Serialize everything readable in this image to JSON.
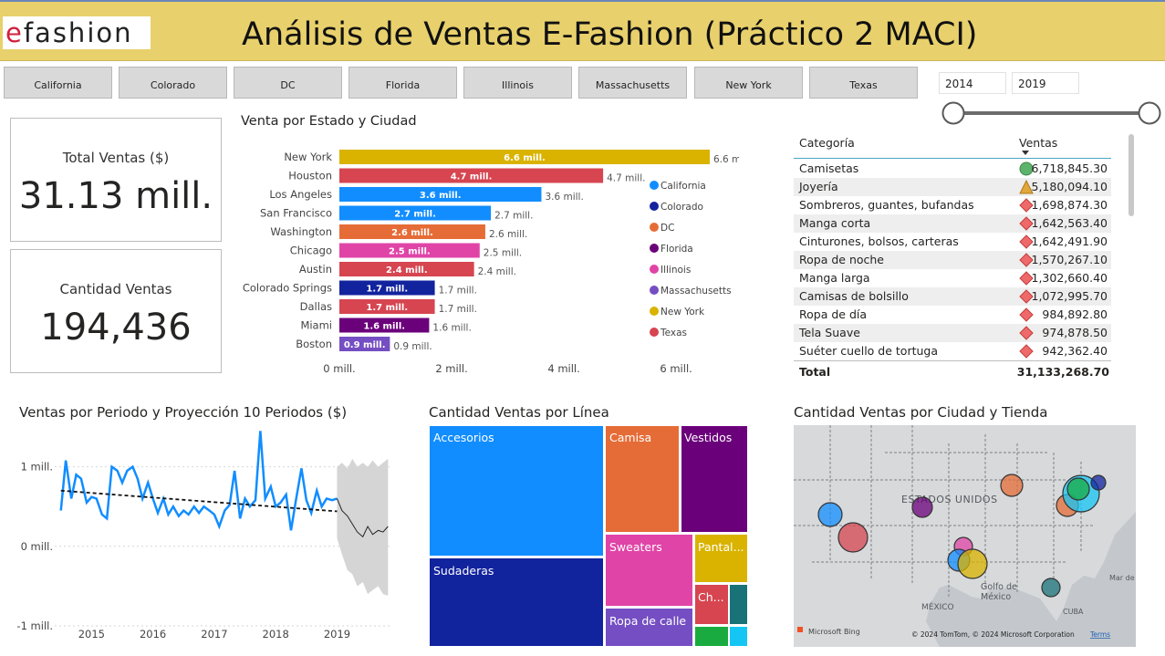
{
  "header": {
    "logo_e": "e",
    "logo_rest": "fashion",
    "title": "Análisis de Ventas E-Fashion (Práctico 2 MACI)"
  },
  "state_slicer": [
    "California",
    "Colorado",
    "DC",
    "Florida",
    "Illinois",
    "Massachusetts",
    "New York",
    "Texas"
  ],
  "date_slicer": {
    "start": "2014",
    "end": "2019",
    "range_selected": [
      0,
      1
    ]
  },
  "cards": {
    "total_label": "Total Ventas ($)",
    "total_value": "31.13 mill.",
    "qty_label": "Cantidad Ventas",
    "qty_value": "194,436"
  },
  "bar_chart_title": "Venta por Estado y Ciudad",
  "line_chart_title": "Ventas por Periodo y Proyección 10 Periodos ($)",
  "treemap_title": "Cantidad Ventas por Línea",
  "map_title": "Cantidad Ventas por Ciudad y Tienda",
  "map": {
    "country_label": "ESTADOS UNIDOS",
    "gulf_label_1": "Golfo de",
    "gulf_label_2": "México",
    "mexico_label": "MÉXICO",
    "cuba_label": "CUBA",
    "sea_label": "Mar de",
    "bing_label": "Microsoft Bing",
    "copyright": "© 2024 TomTom, © 2024 Microsoft Corporation",
    "terms": "Terms"
  },
  "colors": {
    "California": "#118dff",
    "Colorado": "#12239e",
    "DC": "#e66c37",
    "Florida": "#6b007b",
    "Illinois": "#e044a7",
    "Massachusetts": "#744ec2",
    "New York": "#d9b300",
    "Texas": "#d64550",
    "header": "#e8d06c",
    "kpi_good": "#5db36b",
    "kpi_mid": "#e0a73a",
    "kpi_bad": "#ee6a6a"
  },
  "chart_data": [
    {
      "type": "bar",
      "orientation": "horizontal",
      "title": "Venta por Estado y Ciudad",
      "categories": [
        "New York",
        "Houston",
        "Los Angeles",
        "San Francisco",
        "Washington",
        "Chicago",
        "Austin",
        "Colorado Springs",
        "Dallas",
        "Miami",
        "Boston"
      ],
      "values": [
        6.6,
        4.7,
        3.6,
        2.7,
        2.6,
        2.5,
        2.4,
        1.7,
        1.7,
        1.6,
        0.9
      ],
      "labels": [
        "6.6 mill.",
        "4.7 mill.",
        "3.6 mill.",
        "2.7 mill.",
        "2.6 mill.",
        "2.5 mill.",
        "2.4 mill.",
        "1.7 mill.",
        "1.7 mill.",
        "1.6 mill.",
        "0.9 mill."
      ],
      "state": [
        "New York",
        "Texas",
        "California",
        "California",
        "DC",
        "Illinois",
        "Texas",
        "Colorado",
        "Texas",
        "Florida",
        "Massachusetts"
      ],
      "x_ticks": [
        "0 mill.",
        "2 mill.",
        "4 mill.",
        "6 mill."
      ],
      "xlim": [
        0,
        6.6
      ],
      "legend": [
        "California",
        "Colorado",
        "DC",
        "Florida",
        "Illinois",
        "Massachusetts",
        "New York",
        "Texas"
      ],
      "legend_position": "right"
    },
    {
      "type": "line",
      "title": "Ventas por Periodo y Proyección 10 Periodos ($)",
      "y_ticks": [
        "1 mill.",
        "0 mill.",
        "-1 mill."
      ],
      "ylim": [
        -1.0,
        1.5
      ],
      "x_ticks": [
        "2015",
        "2016",
        "2017",
        "2018",
        "2019"
      ],
      "xlim": [
        2014.4,
        2019.9
      ],
      "series": [
        {
          "name": "Ventas",
          "x": [
            2014.5,
            2014.58,
            2014.67,
            2014.75,
            2014.83,
            2014.92,
            2015.0,
            2015.08,
            2015.17,
            2015.25,
            2015.33,
            2015.42,
            2015.5,
            2015.58,
            2015.67,
            2015.75,
            2015.83,
            2015.92,
            2016.0,
            2016.08,
            2016.17,
            2016.25,
            2016.33,
            2016.42,
            2016.5,
            2016.58,
            2016.67,
            2016.75,
            2016.83,
            2016.92,
            2017.0,
            2017.08,
            2017.17,
            2017.25,
            2017.33,
            2017.42,
            2017.5,
            2017.58,
            2017.67,
            2017.75,
            2017.83,
            2017.92,
            2018.0,
            2018.08,
            2018.17,
            2018.25,
            2018.33,
            2018.42,
            2018.5,
            2018.58,
            2018.67,
            2018.75,
            2018.83,
            2018.92,
            2019.0
          ],
          "y": [
            0.45,
            1.08,
            0.6,
            0.9,
            0.85,
            0.55,
            0.62,
            0.6,
            0.4,
            0.35,
            1.0,
            0.95,
            0.8,
            0.95,
            1.0,
            0.85,
            0.6,
            0.8,
            0.6,
            0.42,
            0.6,
            0.4,
            0.5,
            0.38,
            0.45,
            0.4,
            0.5,
            0.42,
            0.5,
            0.45,
            0.4,
            0.25,
            0.45,
            0.52,
            0.95,
            0.35,
            0.6,
            0.5,
            0.58,
            1.45,
            0.6,
            0.75,
            0.5,
            0.55,
            0.65,
            0.2,
            0.58,
            0.98,
            0.58,
            0.42,
            0.7,
            0.5,
            0.6,
            0.58,
            0.6
          ]
        },
        {
          "name": "Tendencia",
          "x": [
            2014.5,
            2019.0
          ],
          "y": [
            0.7,
            0.44
          ]
        },
        {
          "name": "Proyección",
          "x": [
            2019.0,
            2019.08,
            2019.17,
            2019.25,
            2019.33,
            2019.42,
            2019.5,
            2019.58,
            2019.67,
            2019.75,
            2019.83
          ],
          "y": [
            0.6,
            0.45,
            0.38,
            0.28,
            0.18,
            0.12,
            0.25,
            0.15,
            0.2,
            0.18,
            0.25
          ],
          "upper": [
            1.0,
            1.05,
            0.98,
            1.1,
            1.0,
            1.05,
            1.0,
            1.08,
            1.0,
            1.05,
            1.1
          ],
          "lower": [
            0.1,
            -0.1,
            -0.3,
            -0.35,
            -0.5,
            -0.45,
            -0.6,
            -0.55,
            -0.5,
            -0.6,
            -0.62
          ]
        }
      ]
    },
    {
      "type": "treemap",
      "title": "Cantidad Ventas por Línea",
      "categories": [
        "Accesorios",
        "Sudaderas",
        "Camisa",
        "Vestidos",
        "Sweaters",
        "Ropa de calle",
        "Pantal...",
        "Ch..."
      ],
      "colors": [
        "#118dff",
        "#12239e",
        "#e66c37",
        "#6b007b",
        "#e044a7",
        "#744ec2",
        "#d9b300",
        "#d64550"
      ]
    }
  ],
  "table": {
    "col_category": "Categoría",
    "col_sales": "Ventas",
    "rows": [
      {
        "cat": "Camisetas",
        "val": "6,718,845.30",
        "kpi": "good"
      },
      {
        "cat": "Joyería",
        "val": "5,180,094.10",
        "kpi": "mid"
      },
      {
        "cat": "Sombreros, guantes, bufandas",
        "val": "1,698,874.30",
        "kpi": "bad"
      },
      {
        "cat": "Manga corta",
        "val": "1,642,563.40",
        "kpi": "bad"
      },
      {
        "cat": "Cinturones, bolsos, carteras",
        "val": "1,642,491.90",
        "kpi": "bad"
      },
      {
        "cat": "Ropa de noche",
        "val": "1,570,267.10",
        "kpi": "bad"
      },
      {
        "cat": "Manga larga",
        "val": "1,302,660.40",
        "kpi": "bad"
      },
      {
        "cat": "Camisas de bolsillo",
        "val": "1,072,995.70",
        "kpi": "bad"
      },
      {
        "cat": "Ropa de día",
        "val": "984,892.80",
        "kpi": "bad"
      },
      {
        "cat": "Tela Suave",
        "val": "974,878.50",
        "kpi": "bad"
      },
      {
        "cat": "Suéter cuello de tortuga",
        "val": "942,362.40",
        "kpi": "bad"
      }
    ],
    "total_label": "Total",
    "total_value": "31,133,268.70"
  }
}
